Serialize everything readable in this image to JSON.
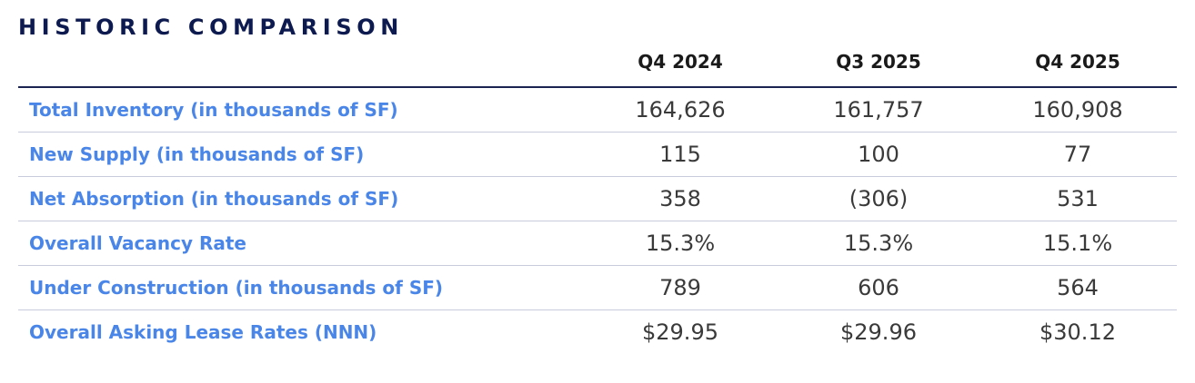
{
  "title": "HISTORIC COMPARISON",
  "columns": [
    "Q4 2024",
    "Q3 2025",
    "Q4 2025"
  ],
  "rows": [
    {
      "label": "Total Inventory (in thousands of SF)",
      "values": [
        "164,626",
        "161,757",
        "160,908"
      ]
    },
    {
      "label": "New Supply (in thousands of SF)",
      "values": [
        "115",
        "100",
        "77"
      ]
    },
    {
      "label": "Net Absorption (in thousands of SF)",
      "values": [
        "358",
        "(306)",
        "531"
      ]
    },
    {
      "label": "Overall Vacancy Rate",
      "values": [
        "15.3%",
        "15.3%",
        "15.1%"
      ]
    },
    {
      "label": "Under Construction (in thousands of SF)",
      "values": [
        "789",
        "606",
        "564"
      ]
    },
    {
      "label": "Overall Asking Lease Rates (NNN)",
      "values": [
        "$29.95",
        "$29.96",
        "$30.12"
      ]
    }
  ],
  "colors": {
    "title": "#0d1a4f",
    "row_label": "#4a86e8",
    "header_rule": "#1b2450",
    "row_divider": "#c7cbdc"
  }
}
